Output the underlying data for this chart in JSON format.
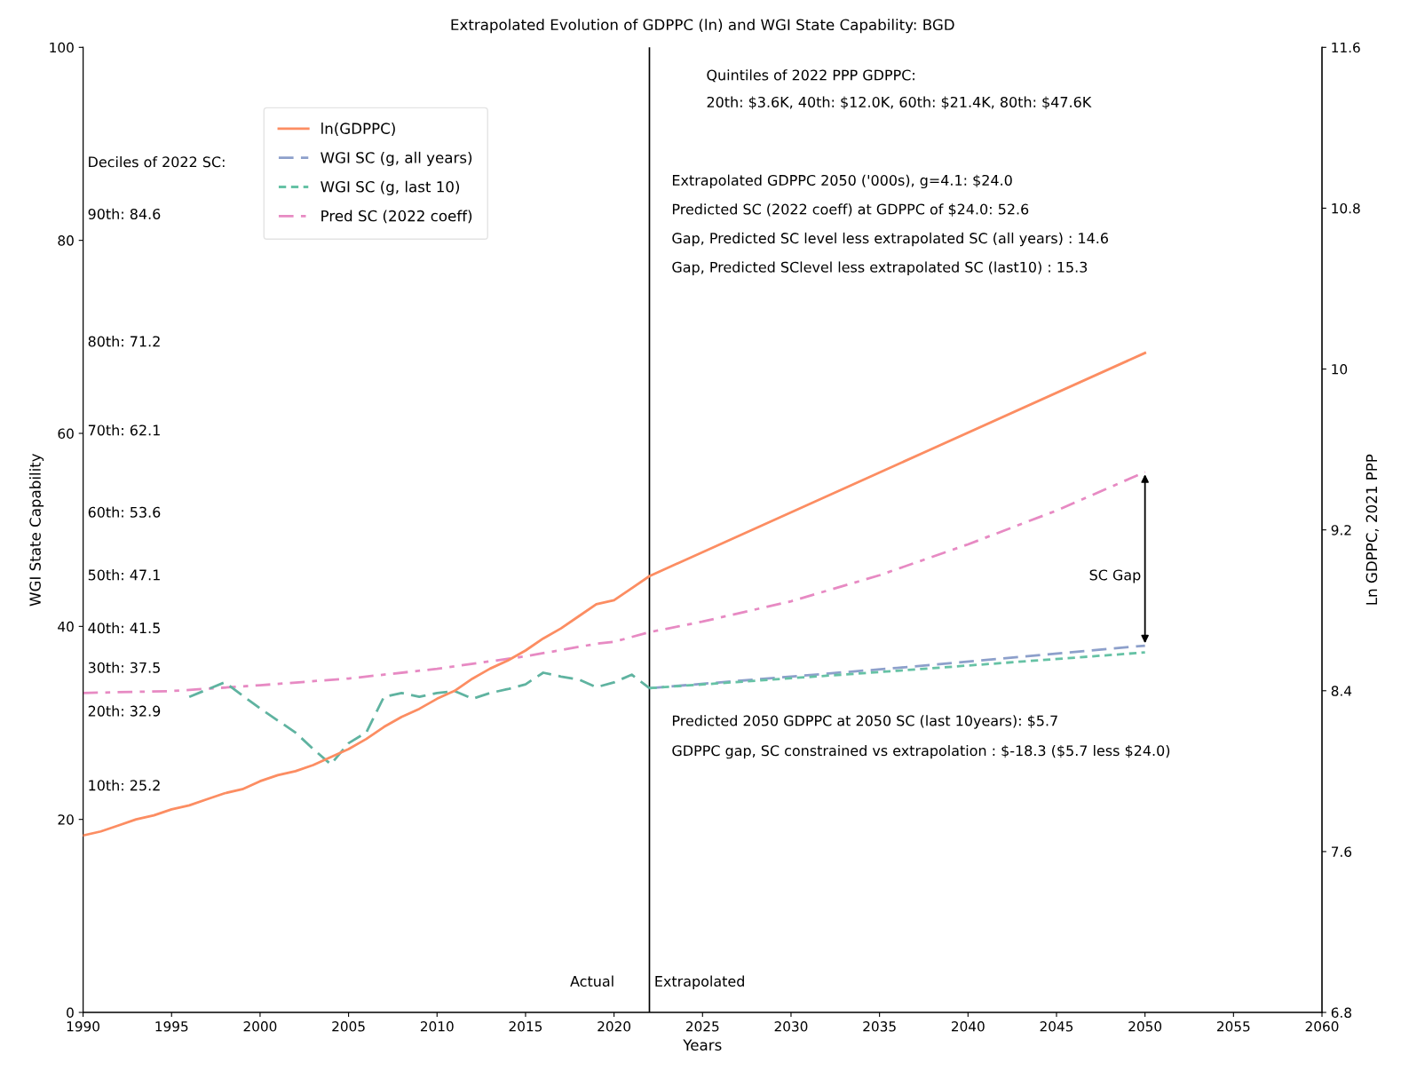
{
  "chart_data": {
    "type": "line",
    "title": "Extrapolated Evolution of GDPPC (ln) and WGI State Capability: BGD",
    "xlabel": "Years",
    "ylabel": "WGI State Capability",
    "y2label": "Ln GDPPC, 2021 PPP",
    "xlim": [
      1990,
      2060
    ],
    "xticks": [
      1990,
      1995,
      2000,
      2005,
      2010,
      2015,
      2020,
      2025,
      2030,
      2035,
      2040,
      2045,
      2050,
      2055,
      2060
    ],
    "ylim": [
      0,
      100
    ],
    "yticks": [
      0,
      20,
      40,
      60,
      80,
      100
    ],
    "y2lim": [
      6.8,
      11.6
    ],
    "y2ticks": [
      6.8,
      7.6,
      8.4,
      9.2,
      10,
      10.8,
      11.6
    ],
    "grid": false,
    "legend": "top left",
    "series": [
      {
        "name": "ln(GDPPC)",
        "color": "#fc8d62",
        "axis": "y2",
        "line_style": "solid",
        "x": [
          1990,
          1991,
          1992,
          1993,
          1994,
          1995,
          1996,
          1997,
          1998,
          1999,
          2000,
          2001,
          2002,
          2003,
          2004,
          2005,
          2006,
          2007,
          2008,
          2009,
          2010,
          2011,
          2012,
          2013,
          2014,
          2015,
          2016,
          2017,
          2018,
          2019,
          2020,
          2021,
          2022,
          2050
        ],
        "values": [
          7.68,
          7.7,
          7.73,
          7.76,
          7.78,
          7.81,
          7.83,
          7.86,
          7.89,
          7.91,
          7.95,
          7.98,
          8.0,
          8.03,
          8.07,
          8.11,
          8.16,
          8.22,
          8.27,
          8.31,
          8.36,
          8.4,
          8.46,
          8.51,
          8.55,
          8.6,
          8.66,
          8.71,
          8.77,
          8.83,
          8.85,
          8.91,
          8.97,
          10.08
        ]
      },
      {
        "name": "WGI SC (g, all years)",
        "color": "#8da0cb",
        "line_style": "dashed",
        "x": [
          2022,
          2036,
          2050
        ],
        "values": [
          33.6,
          35.7,
          38.0
        ]
      },
      {
        "name": "WGI SC (g, last 10)",
        "color": "#66c2a5",
        "line_style": "dotted",
        "x": [
          2022,
          2036,
          2050
        ],
        "values": [
          33.6,
          35.4,
          37.3
        ]
      },
      {
        "name": "Pred SC (2022 coeff)",
        "color": "#e78ac3",
        "line_style": "dashdot",
        "x": [
          1990,
          1995,
          2000,
          2005,
          2010,
          2015,
          2019,
          2020,
          2021,
          2022,
          2025,
          2030,
          2035,
          2040,
          2045,
          2050
        ],
        "values": [
          33.1,
          33.3,
          33.9,
          34.6,
          35.6,
          36.9,
          38.2,
          38.4,
          38.9,
          39.4,
          40.5,
          42.6,
          45.3,
          48.5,
          52.0,
          56.0
        ]
      },
      {
        "color": "#5fb3a0",
        "line_style": "dashed",
        "x": [
          1996,
          1998,
          2000,
          2002,
          2003,
          2004,
          2005,
          2006,
          2007,
          2008,
          2009,
          2010,
          2011,
          2012,
          2013,
          2014,
          2015,
          2016,
          2017,
          2018,
          2019,
          2020,
          2021,
          2022
        ],
        "values": [
          32.7,
          34.2,
          31.5,
          29.0,
          27.3,
          25.7,
          27.9,
          29.0,
          32.7,
          33.1,
          32.7,
          33.1,
          33.3,
          32.5,
          33.1,
          33.5,
          34.0,
          35.2,
          34.8,
          34.5,
          33.7,
          34.2,
          35.0,
          33.6
        ]
      }
    ],
    "ref_lines": [
      {
        "axis": "x",
        "value": 2022,
        "color": "#000000"
      }
    ],
    "annotations": [
      "Deciles of 2022 SC:",
      "90th: 84.6",
      "80th: 71.2",
      "70th: 62.1",
      "60th: 53.6",
      "50th: 47.1",
      "40th: 41.5",
      "30th: 37.5",
      "20th: 32.9",
      "10th: 25.2",
      "Quintiles of 2022 PPP GDPPC:",
      "20th: $3.6K, 40th: $12.0K, 60th: $21.4K, 80th: $47.6K",
      "Extrapolated GDPPC 2050 ('000s), g=4.1: $24.0",
      "Predicted SC (2022 coeff) at GDPPC of $24.0: 52.6",
      "Gap, Predicted SC level less extrapolated SC (all years) : 14.6",
      "Gap, Predicted SClevel less extrapolated SC (last10) : 15.3",
      "Predicted 2050 GDPPC at 2050 SC (last 10years): $5.7",
      "GDPPC gap, SC constrained vs extrapolation : $-18.3 ($5.7 less $24.0)",
      "Actual",
      "Extrapolated",
      "SC Gap"
    ]
  }
}
